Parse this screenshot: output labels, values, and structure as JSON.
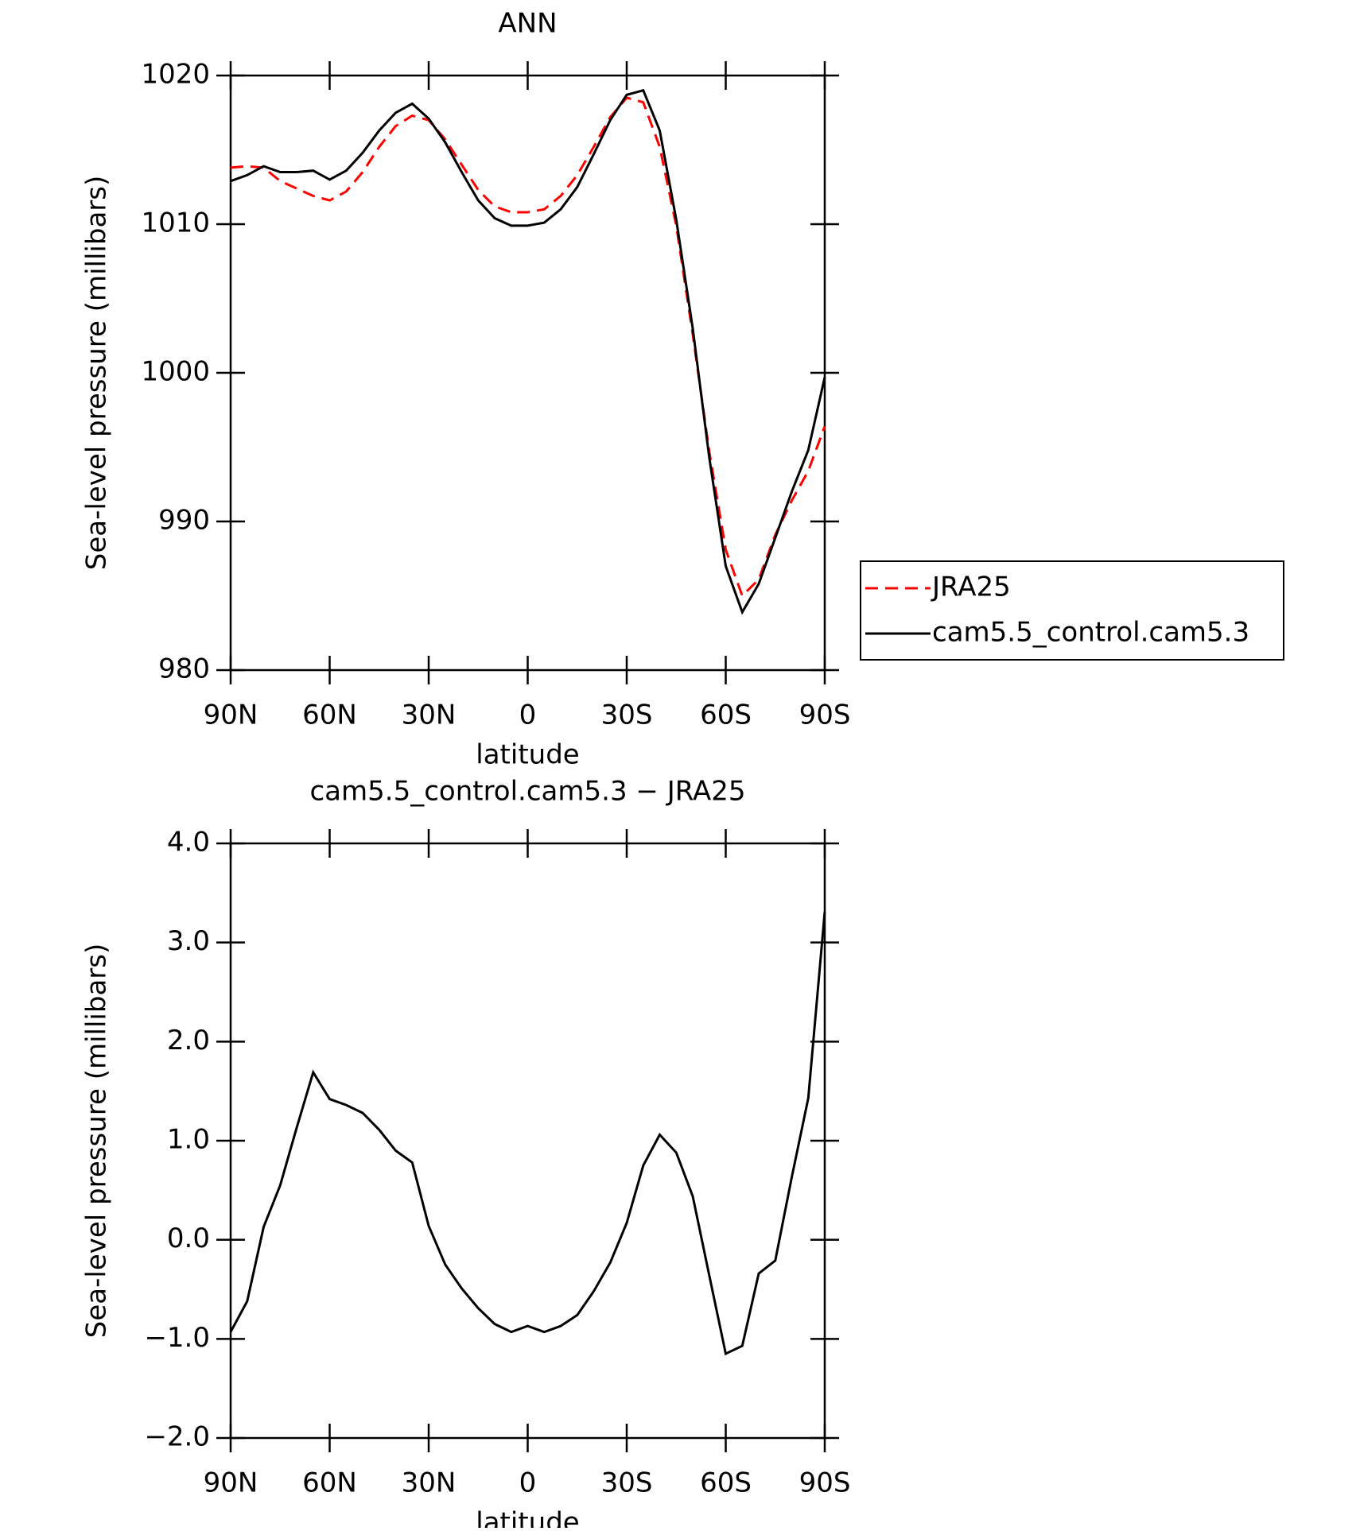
{
  "chart_data": [
    {
      "type": "line",
      "title": "ANN",
      "x_label": "latitude",
      "y_label": "Sea-level pressure (millibars)",
      "x": [
        90,
        85,
        80,
        75,
        70,
        65,
        60,
        55,
        50,
        45,
        40,
        35,
        30,
        25,
        20,
        15,
        10,
        5,
        0,
        -5,
        -10,
        -15,
        -20,
        -25,
        -30,
        -35,
        -40,
        -45,
        -50,
        -55,
        -60,
        -65,
        -70,
        -75,
        -80,
        -85,
        -90
      ],
      "xlim": [
        90,
        -90
      ],
      "xticks": [
        {
          "value": 90,
          "label": "90N"
        },
        {
          "value": 60,
          "label": "60N"
        },
        {
          "value": 30,
          "label": "30N"
        },
        0,
        {
          "value": -30,
          "label": "30S"
        },
        {
          "value": -60,
          "label": "60S"
        },
        {
          "value": -90,
          "label": "90S"
        }
      ],
      "ylim": [
        980,
        1020
      ],
      "yticks": [
        980,
        990,
        1000,
        1010,
        1020
      ],
      "legend": "outside-right",
      "series": [
        {
          "name": "JRA25",
          "color": "#ff0000",
          "line_style": "dashed",
          "values": [
            1013.8,
            1013.9,
            1013.8,
            1012.9,
            1012.4,
            1011.9,
            1011.6,
            1012.2,
            1013.5,
            1015.2,
            1016.6,
            1017.3,
            1017.0,
            1015.7,
            1014.0,
            1012.3,
            1011.2,
            1010.8,
            1010.8,
            1011.0,
            1011.9,
            1013.3,
            1015.2,
            1017.2,
            1018.5,
            1018.2,
            1015.2,
            1009.9,
            1002.6,
            994.7,
            988.1,
            985.0,
            986.1,
            989.1,
            991.4,
            993.4,
            996.4
          ]
        },
        {
          "name": "cam5.5_control.cam5.3",
          "color": "#000000",
          "line_style": "solid",
          "values": [
            1012.9,
            1013.3,
            1013.9,
            1013.5,
            1013.5,
            1013.6,
            1013.0,
            1013.6,
            1014.8,
            1016.3,
            1017.5,
            1018.1,
            1017.1,
            1015.5,
            1013.5,
            1011.6,
            1010.4,
            1009.9,
            1009.9,
            1010.1,
            1011.0,
            1012.5,
            1014.7,
            1017.0,
            1018.7,
            1019.0,
            1016.3,
            1010.3,
            1003.0,
            994.3,
            987.0,
            983.9,
            985.8,
            988.9,
            992.0,
            994.8,
            999.7
          ]
        }
      ]
    },
    {
      "type": "line",
      "title": "cam5.5_control.cam5.3 − JRA25",
      "x_label": "latitude",
      "y_label": "Sea-level pressure (millibars)",
      "x": [
        90,
        85,
        80,
        75,
        70,
        65,
        60,
        55,
        50,
        45,
        40,
        35,
        30,
        25,
        20,
        15,
        10,
        5,
        0,
        -5,
        -10,
        -15,
        -20,
        -25,
        -30,
        -35,
        -40,
        -45,
        -50,
        -55,
        -60,
        -65,
        -70,
        -75,
        -80,
        -85,
        -90
      ],
      "xlim": [
        90,
        -90
      ],
      "xticks": [
        {
          "value": 90,
          "label": "90N"
        },
        {
          "value": 60,
          "label": "60N"
        },
        {
          "value": 30,
          "label": "30N"
        },
        0,
        {
          "value": -30,
          "label": "30S"
        },
        {
          "value": -60,
          "label": "60S"
        },
        {
          "value": -90,
          "label": "90S"
        }
      ],
      "ylim": [
        -2,
        4
      ],
      "yticks": [
        {
          "value": -2,
          "label": "−2.0"
        },
        {
          "value": -1,
          "label": "−1.0"
        },
        {
          "value": 0,
          "label": "0.0"
        },
        {
          "value": 1,
          "label": "1.0"
        },
        {
          "value": 2,
          "label": "2.0"
        },
        {
          "value": 3,
          "label": "3.0"
        },
        {
          "value": 4,
          "label": "4.0"
        }
      ],
      "color": "#000000",
      "values": [
        -0.93,
        -0.62,
        0.13,
        0.55,
        1.13,
        1.69,
        1.42,
        1.36,
        1.28,
        1.11,
        0.9,
        0.78,
        0.14,
        -0.25,
        -0.49,
        -0.69,
        -0.85,
        -0.93,
        -0.87,
        -0.93,
        -0.87,
        -0.76,
        -0.52,
        -0.23,
        0.17,
        0.75,
        1.06,
        0.88,
        0.44,
        -0.36,
        -1.15,
        -1.07,
        -0.34,
        -0.21,
        0.63,
        1.43,
        3.31
      ]
    }
  ]
}
